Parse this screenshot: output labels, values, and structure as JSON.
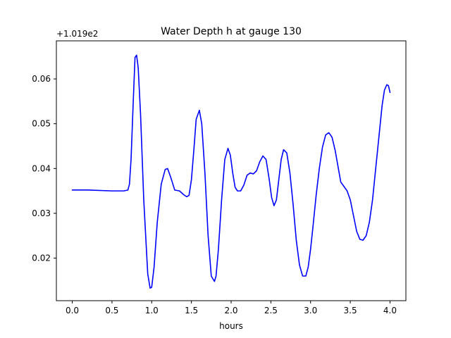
{
  "chart_data": {
    "type": "line",
    "title": "Water Depth h at gauge 130",
    "xlabel": "hours",
    "ylabel": "",
    "offset_text": "+1.019e2",
    "xlim": [
      -0.2,
      4.2
    ],
    "ylim": [
      0.0105,
      0.0685
    ],
    "x_ticks": [
      0.0,
      0.5,
      1.0,
      1.5,
      2.0,
      2.5,
      3.0,
      3.5,
      4.0
    ],
    "x_tick_labels": [
      "0.0",
      "0.5",
      "1.0",
      "1.5",
      "2.0",
      "2.5",
      "3.0",
      "3.5",
      "4.0"
    ],
    "y_ticks": [
      0.02,
      0.03,
      0.04,
      0.05,
      0.06
    ],
    "y_tick_labels": [
      "0.02",
      "0.03",
      "0.04",
      "0.05",
      "0.06"
    ],
    "grid": false,
    "legend": "none",
    "series": [
      {
        "color": "#0000ff",
        "x": [
          0.0,
          0.2,
          0.5,
          0.65,
          0.7,
          0.72,
          0.74,
          0.77,
          0.79,
          0.81,
          0.83,
          0.86,
          0.9,
          0.95,
          0.98,
          1.0,
          1.03,
          1.07,
          1.12,
          1.17,
          1.2,
          1.24,
          1.29,
          1.35,
          1.4,
          1.44,
          1.47,
          1.5,
          1.53,
          1.56,
          1.6,
          1.63,
          1.67,
          1.71,
          1.75,
          1.79,
          1.81,
          1.84,
          1.88,
          1.92,
          1.96,
          1.99,
          2.02,
          2.05,
          2.08,
          2.12,
          2.16,
          2.2,
          2.24,
          2.28,
          2.32,
          2.36,
          2.4,
          2.44,
          2.48,
          2.51,
          2.54,
          2.57,
          2.6,
          2.63,
          2.66,
          2.7,
          2.74,
          2.78,
          2.82,
          2.86,
          2.9,
          2.94,
          2.97,
          3.0,
          3.03,
          3.07,
          3.11,
          3.15,
          3.19,
          3.23,
          3.27,
          3.31,
          3.35,
          3.38,
          3.42,
          3.46,
          3.5,
          3.54,
          3.58,
          3.62,
          3.66,
          3.7,
          3.74,
          3.78,
          3.82,
          3.86,
          3.9,
          3.93,
          3.96,
          3.98,
          4.0
        ],
        "y": [
          0.0352,
          0.0352,
          0.035,
          0.035,
          0.0352,
          0.0365,
          0.042,
          0.056,
          0.0648,
          0.0653,
          0.0625,
          0.052,
          0.033,
          0.0165,
          0.0133,
          0.0135,
          0.018,
          0.028,
          0.0365,
          0.0398,
          0.04,
          0.038,
          0.0352,
          0.035,
          0.0342,
          0.0337,
          0.034,
          0.0375,
          0.044,
          0.051,
          0.053,
          0.05,
          0.039,
          0.025,
          0.016,
          0.0148,
          0.016,
          0.022,
          0.033,
          0.042,
          0.0445,
          0.043,
          0.039,
          0.0358,
          0.035,
          0.035,
          0.0363,
          0.0385,
          0.039,
          0.0388,
          0.0395,
          0.0415,
          0.0428,
          0.042,
          0.0375,
          0.0335,
          0.0317,
          0.033,
          0.0375,
          0.042,
          0.0442,
          0.0435,
          0.039,
          0.032,
          0.024,
          0.0185,
          0.016,
          0.016,
          0.018,
          0.022,
          0.027,
          0.034,
          0.04,
          0.0448,
          0.0475,
          0.048,
          0.047,
          0.044,
          0.04,
          0.037,
          0.036,
          0.035,
          0.033,
          0.0295,
          0.026,
          0.0242,
          0.024,
          0.025,
          0.028,
          0.033,
          0.04,
          0.047,
          0.054,
          0.0575,
          0.0587,
          0.0585,
          0.057
        ]
      }
    ]
  }
}
